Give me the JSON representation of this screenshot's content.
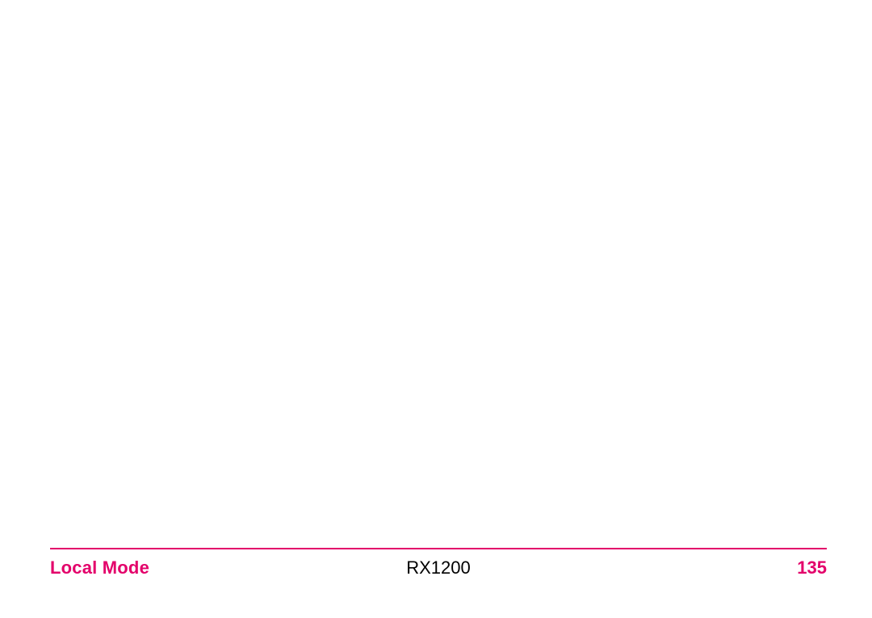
{
  "colors": {
    "accent": "#e3006a",
    "text": "#000000",
    "rule": "#e3006a",
    "background": "#ffffff"
  },
  "footer": {
    "left_label": "Local Mode",
    "center_label": "RX1200",
    "page_number": "135"
  },
  "typography": {
    "footer_fontsize": 22,
    "footer_weight_bold": 700,
    "footer_weight_normal": 400
  }
}
